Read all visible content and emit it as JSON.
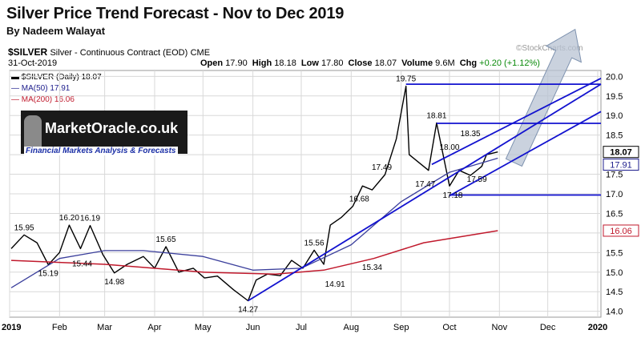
{
  "header": {
    "title": "Silver Price Trend Forecast - Nov to Dec 2019",
    "byline": "By Nadeem Walayat",
    "watermark": "©StockCharts.com"
  },
  "symbol": {
    "ticker": "$SILVER",
    "description": "Silver - Continuous Contract (EOD)",
    "exchange": "CME",
    "date": "31-Oct-2019"
  },
  "ohlc": {
    "open_label": "Open",
    "open": "17.90",
    "high_label": "High",
    "high": "18.18",
    "low_label": "Low",
    "low": "17.80",
    "close_label": "Close",
    "close": "18.07",
    "volume_label": "Volume",
    "volume": "9.6M",
    "chg_label": "Chg",
    "chg": "+0.20 (+1.12%)"
  },
  "legend": {
    "price": "$SILVER (Daily) 18.07",
    "ma50": "MA(50) 17.91",
    "ma200": "MA(200) 16.06"
  },
  "banner": {
    "logo_text": "MarketOracle.co.uk",
    "tagline": "Financial Markets Analysis & Forecasts"
  },
  "colors": {
    "price": "#000000",
    "ma50": "#3b3f9c",
    "ma200": "#c0192c",
    "trendline": "#1212cf",
    "forecast_arrow": "#b8c3d3",
    "axis_label_ma50": "#1d1d8c",
    "axis_label_ma200": "#c0192c"
  },
  "chart_data": {
    "type": "line",
    "title": "Silver Price Trend Forecast - Nov to Dec 2019",
    "xlabel": "",
    "ylabel": "",
    "x_ticks": [
      "2019",
      "Feb",
      "Mar",
      "Apr",
      "May",
      "Jun",
      "Jul",
      "Aug",
      "Sep",
      "Oct",
      "Nov",
      "Dec",
      "2020"
    ],
    "y_ticks": [
      "14.0",
      "14.5",
      "15.0",
      "15.5",
      "16.0",
      "16.5",
      "17.0",
      "17.5",
      "18.0",
      "18.5",
      "19.0",
      "19.5",
      "20.0"
    ],
    "ylim": [
      13.85,
      20.15
    ],
    "grid": true,
    "series": [
      {
        "name": "$SILVER (Daily)",
        "x": [
          "2019-01-02",
          "2019-01-10",
          "2019-01-18",
          "2019-01-25",
          "2019-02-01",
          "2019-02-07",
          "2019-02-14",
          "2019-02-20",
          "2019-02-28",
          "2019-03-07",
          "2019-03-15",
          "2019-03-25",
          "2019-04-01",
          "2019-04-08",
          "2019-04-16",
          "2019-04-25",
          "2019-05-02",
          "2019-05-10",
          "2019-05-20",
          "2019-05-29",
          "2019-06-03",
          "2019-06-10",
          "2019-06-18",
          "2019-06-25",
          "2019-07-02",
          "2019-07-09",
          "2019-07-15",
          "2019-07-19",
          "2019-07-26",
          "2019-08-02",
          "2019-08-08",
          "2019-08-14",
          "2019-08-22",
          "2019-08-29",
          "2019-09-04",
          "2019-09-06",
          "2019-09-12",
          "2019-09-18",
          "2019-09-23",
          "2019-10-01",
          "2019-10-07",
          "2019-10-14",
          "2019-10-21",
          "2019-10-24",
          "2019-10-31"
        ],
        "values": [
          15.6,
          15.95,
          15.75,
          15.19,
          15.5,
          16.2,
          15.6,
          16.19,
          15.44,
          14.98,
          15.2,
          15.4,
          15.1,
          15.65,
          15.0,
          15.1,
          14.85,
          14.9,
          14.55,
          14.27,
          14.8,
          14.95,
          14.91,
          15.3,
          15.1,
          15.56,
          15.2,
          16.2,
          16.4,
          16.68,
          17.2,
          17.1,
          17.49,
          18.4,
          19.75,
          18.0,
          17.8,
          17.6,
          18.81,
          17.2,
          17.6,
          17.47,
          17.7,
          18.0,
          18.07
        ]
      },
      {
        "name": "MA(50)",
        "x": [
          "2019-01-02",
          "2019-02-01",
          "2019-03-01",
          "2019-03-25",
          "2019-05-01",
          "2019-06-01",
          "2019-07-01",
          "2019-08-01",
          "2019-09-01",
          "2019-10-01",
          "2019-10-31"
        ],
        "values": [
          14.6,
          15.35,
          15.55,
          15.55,
          15.4,
          15.05,
          15.1,
          15.7,
          16.8,
          17.55,
          17.91
        ]
      },
      {
        "name": "MA(200)",
        "x": [
          "2019-01-02",
          "2019-03-01",
          "2019-05-01",
          "2019-06-15",
          "2019-07-15",
          "2019-08-15",
          "2019-09-15",
          "2019-10-31"
        ],
        "values": [
          15.3,
          15.2,
          15.0,
          14.95,
          15.05,
          15.35,
          15.75,
          16.06
        ]
      }
    ],
    "price_labels": [
      {
        "date": "2019-01-10",
        "value": 15.95,
        "text": "15.95"
      },
      {
        "date": "2019-01-25",
        "value": 15.19,
        "text": "15.19"
      },
      {
        "date": "2019-02-07",
        "value": 16.2,
        "text": "16.20"
      },
      {
        "date": "2019-02-15",
        "value": 15.44,
        "text": "15.44"
      },
      {
        "date": "2019-02-20",
        "value": 16.19,
        "text": "16.19"
      },
      {
        "date": "2019-03-07",
        "value": 14.98,
        "text": "14.98"
      },
      {
        "date": "2019-04-08",
        "value": 15.65,
        "text": "15.65"
      },
      {
        "date": "2019-05-29",
        "value": 14.27,
        "text": "14.27"
      },
      {
        "date": "2019-07-09",
        "value": 15.56,
        "text": "15.56"
      },
      {
        "date": "2019-07-22",
        "value": 14.91,
        "text": "14.91"
      },
      {
        "date": "2019-08-06",
        "value": 16.68,
        "text": "16.68"
      },
      {
        "date": "2019-08-14",
        "value": 15.34,
        "text": "15.34"
      },
      {
        "date": "2019-08-20",
        "value": 17.49,
        "text": "17.49"
      },
      {
        "date": "2019-09-04",
        "value": 19.75,
        "text": "19.75"
      },
      {
        "date": "2019-09-16",
        "value": 17.47,
        "text": "17.47"
      },
      {
        "date": "2019-09-23",
        "value": 18.81,
        "text": "18.81"
      },
      {
        "date": "2019-10-01",
        "value": 18.0,
        "text": "18.00"
      },
      {
        "date": "2019-10-03",
        "value": 17.18,
        "text": "17.18"
      },
      {
        "date": "2019-10-14",
        "value": 18.35,
        "text": "18.35"
      },
      {
        "date": "2019-10-18",
        "value": 17.59,
        "text": "17.59"
      }
    ],
    "trendlines": [
      {
        "from": [
          "2019-05-29",
          14.27
        ],
        "to": [
          "2020-01-03",
          19.8
        ]
      },
      {
        "from": [
          "2019-09-20",
          17.75
        ],
        "to": [
          "2020-01-03",
          19.95
        ]
      },
      {
        "from": [
          "2019-10-01",
          16.95
        ],
        "to": [
          "2020-01-03",
          19.1
        ]
      },
      {
        "from": [
          "2019-09-04",
          19.8
        ],
        "to": [
          "2020-01-03",
          19.8
        ]
      },
      {
        "from": [
          "2019-09-23",
          18.8
        ],
        "to": [
          "2020-01-03",
          18.8
        ]
      },
      {
        "from": [
          "2019-10-01",
          16.97
        ],
        "to": [
          "2020-01-03",
          16.97
        ]
      }
    ],
    "right_axis_labels": [
      {
        "value": 18.07,
        "text": "18.07",
        "series": "$SILVER (Daily)"
      },
      {
        "value": 17.91,
        "text": "17.91",
        "series": "MA(50)"
      },
      {
        "value": 16.06,
        "text": "16.06",
        "series": "MA(200)"
      }
    ],
    "forecast_arrow": {
      "from_date": "2019-11-10",
      "from_value": 17.8,
      "to_date": "2019-12-18",
      "to_value": 21.2
    }
  }
}
